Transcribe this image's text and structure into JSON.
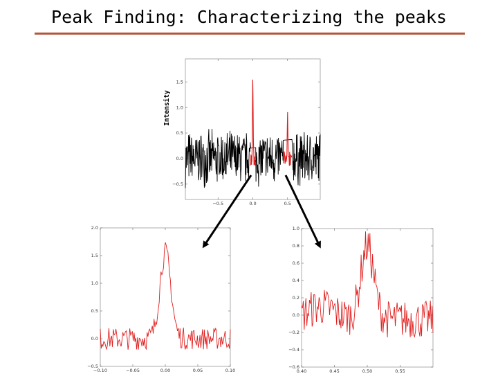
{
  "title": "Peak Finding: Characterizing the peaks",
  "colors": {
    "accent_rule": "#b5563a",
    "noise": "#000000",
    "peak": "#e01b1b"
  },
  "chart_data": [
    {
      "id": "main",
      "type": "line",
      "xlabel": "",
      "ylabel": "Intensity",
      "xlim": [
        -0.97,
        0.97
      ],
      "ylim": [
        -0.8,
        1.95
      ],
      "xticks": [
        -0.5,
        0.0,
        0.5
      ],
      "xtick_labels": [
        "−0.5",
        "0.0",
        "0.5"
      ],
      "yticks": [
        -0.5,
        0.0,
        0.5,
        1.0,
        1.5
      ],
      "ytick_labels": [
        "−0.5",
        "0.0",
        "0.5",
        "1.0",
        "1.5"
      ],
      "grid": false,
      "series": [
        {
          "x": [
            -0.97,
            0.97
          ],
          "noise_amplitude": 0.6,
          "color": "#000000"
        },
        {
          "x": [
            -0.03,
            0.04
          ],
          "peak_center": 0.0,
          "peak_height": 1.6,
          "color": "#e01b1b"
        },
        {
          "x": [
            0.44,
            0.56
          ],
          "peak_center": 0.5,
          "peak_height": 1.0,
          "color": "#e01b1b"
        }
      ]
    },
    {
      "id": "zoom-left",
      "type": "line",
      "xlabel": "",
      "ylabel": "",
      "xlim": [
        -0.1,
        0.1
      ],
      "ylim": [
        -0.5,
        2.0
      ],
      "xticks": [
        -0.1,
        -0.05,
        0.0,
        0.05,
        0.1
      ],
      "xtick_labels": [
        "−0.10",
        "−0.05",
        "0.00",
        "0.05",
        "0.10"
      ],
      "yticks": [
        -0.5,
        0.0,
        0.5,
        1.0,
        1.5,
        2.0
      ],
      "ytick_labels": [
        "−0.5",
        "0.0",
        "0.5",
        "1.0",
        "1.5",
        "2.0"
      ],
      "grid": false,
      "series": [
        {
          "peak_center": 0.0,
          "peak_width": 0.012,
          "peak_height": 1.55,
          "noise_amplitude": 0.2,
          "color": "#e01b1b"
        }
      ]
    },
    {
      "id": "zoom-right",
      "type": "line",
      "xlabel": "",
      "ylabel": "",
      "xlim": [
        0.4,
        0.6
      ],
      "ylim": [
        -0.6,
        1.0
      ],
      "xticks": [
        0.4,
        0.45,
        0.5,
        0.55
      ],
      "xtick_labels": [
        "0.40",
        "0.45",
        "0.50",
        "0.55"
      ],
      "yticks": [
        -0.6,
        -0.4,
        -0.2,
        0.0,
        0.2,
        0.4,
        0.6,
        0.8,
        1.0
      ],
      "ytick_labels": [
        "−0.6",
        "−0.4",
        "−0.2",
        "0.0",
        "0.2",
        "0.4",
        "0.6",
        "0.8",
        "1.0"
      ],
      "grid": false,
      "series": [
        {
          "peak_center": 0.5,
          "peak_width": 0.014,
          "peak_height": 0.85,
          "noise_amplitude": 0.22,
          "color": "#e01b1b"
        }
      ]
    }
  ]
}
